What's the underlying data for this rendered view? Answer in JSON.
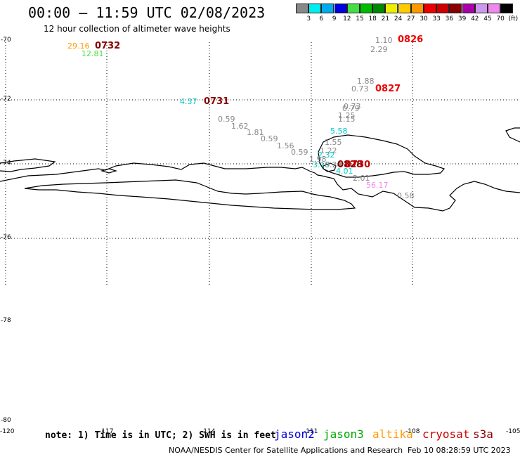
{
  "header": {
    "title": "00:00 – 11:59 UTC 02/08/2023",
    "subtitle": "12 hour collection of altimeter wave heights"
  },
  "legend": {
    "colors": [
      "#888888",
      "#00eeee",
      "#00aaee",
      "#0000dd",
      "#44dd44",
      "#00bb00",
      "#008800",
      "#eeee00",
      "#ffcc00",
      "#ff9900",
      "#ee0000",
      "#cc0000",
      "#880000",
      "#aa00aa",
      "#cc99ee",
      "#ee88ee",
      "#000000"
    ],
    "labels": [
      "3",
      "6",
      "9",
      "12",
      "15",
      "18",
      "21",
      "24",
      "27",
      "30",
      "33",
      "36",
      "39",
      "42",
      "45",
      "70",
      "(ft)"
    ]
  },
  "axes": {
    "lat_labels": [
      "-70",
      "-72",
      "-74",
      "-76",
      "-78",
      "-80"
    ],
    "lon_labels": [
      "-120",
      "-117",
      "-114",
      "-111",
      "-108",
      "-105"
    ]
  },
  "observations": [
    {
      "text": "29.16",
      "color": "#ff9900"
    },
    {
      "text": "12.81",
      "color": "#44dd44"
    },
    {
      "text": "1.10",
      "color": "#888888"
    },
    {
      "text": "2.29",
      "color": "#888888"
    },
    {
      "text": "1.88",
      "color": "#888888"
    },
    {
      "text": "0.73",
      "color": "#888888"
    },
    {
      "text": "4.37",
      "color": "#00cccc"
    },
    {
      "text": "0.73",
      "color": "#888888"
    },
    {
      "text": "0.79",
      "color": "#888888"
    },
    {
      "text": "1.25",
      "color": "#888888"
    },
    {
      "text": "1.15",
      "color": "#888888"
    },
    {
      "text": "0.59",
      "color": "#888888"
    },
    {
      "text": "1.62",
      "color": "#888888"
    },
    {
      "text": "1.81",
      "color": "#888888"
    },
    {
      "text": "5.58",
      "color": "#00cccc"
    },
    {
      "text": "0.59",
      "color": "#888888"
    },
    {
      "text": "1.55",
      "color": "#888888"
    },
    {
      "text": "1.56",
      "color": "#888888"
    },
    {
      "text": "0.59",
      "color": "#888888"
    },
    {
      "text": "1.22",
      "color": "#888888"
    },
    {
      "text": "2.32",
      "color": "#00cccc"
    },
    {
      "text": "1.98",
      "color": "#888888"
    },
    {
      "text": "3.19",
      "color": "#00cccc"
    },
    {
      "text": "0.24",
      "color": "#888888"
    },
    {
      "text": "4.01",
      "color": "#00cccc"
    },
    {
      "text": "2.01",
      "color": "#888888"
    },
    {
      "text": "56.17",
      "color": "#ee88ee"
    },
    {
      "text": "0.58",
      "color": "#888888"
    }
  ],
  "passes": [
    {
      "text": "0732",
      "color": "#880000"
    },
    {
      "text": "0826",
      "color": "#ee0000"
    },
    {
      "text": "0827",
      "color": "#ee0000"
    },
    {
      "text": "0731",
      "color": "#880000"
    },
    {
      "text": "0828",
      "color": "#880000"
    },
    {
      "text": "0730",
      "color": "#cc0000"
    }
  ],
  "footer": {
    "note": "note: 1) Time is in UTC; 2) SWH is in feet",
    "satellites": [
      {
        "name": "jason2",
        "color": "#0000dd"
      },
      {
        "name": "jason3",
        "color": "#00aa00"
      },
      {
        "name": "altika",
        "color": "#ff9900"
      },
      {
        "name": "cryosat",
        "color": "#cc0000"
      },
      {
        "name": "s3a",
        "color": "#880000"
      }
    ],
    "credit": "NOAA/NESDIS Center for Satellite Applications and Research",
    "timestamp": "Feb 10 08:28:59 UTC 2023"
  }
}
